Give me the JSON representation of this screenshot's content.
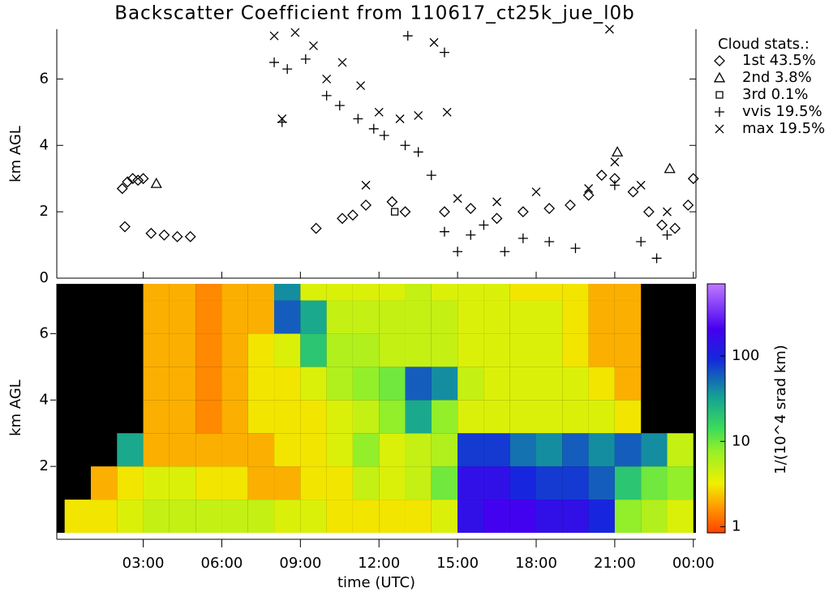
{
  "chart_data": [
    {
      "type": "scatter",
      "title": "Backscatter Coefficient from 110617_ct25k_jue_l0b",
      "y_label": "km AGL",
      "ylim": [
        0,
        7.5
      ],
      "yticks": [
        0,
        2,
        4,
        6
      ],
      "xlim": [
        -0.3,
        24.1
      ],
      "legend_title": "Cloud stats.:",
      "series": [
        {
          "name": "1st 43.5%",
          "marker": "diamond",
          "color": "#000000",
          "x": [
            2.2,
            2.4,
            2.6,
            2.8,
            3.0,
            2.3,
            3.3,
            3.8,
            4.3,
            4.8,
            9.6,
            10.6,
            11.0,
            11.5,
            12.5,
            13.0,
            14.5,
            15.5,
            16.5,
            17.5,
            18.5,
            19.3,
            20.0,
            20.5,
            21.0,
            21.7,
            22.3,
            22.8,
            23.3,
            23.8,
            24.0
          ],
          "y": [
            2.7,
            2.9,
            3.0,
            2.95,
            3.0,
            1.55,
            1.35,
            1.3,
            1.25,
            1.25,
            1.5,
            1.8,
            1.9,
            2.2,
            2.3,
            2.0,
            2.0,
            2.1,
            1.8,
            2.0,
            2.1,
            2.2,
            2.5,
            3.1,
            3.0,
            2.6,
            2.0,
            1.6,
            1.5,
            2.2,
            3.0
          ]
        },
        {
          "name": "2nd 3.8%",
          "marker": "triangle",
          "color": "#000000",
          "x": [
            3.5,
            21.1,
            23.1
          ],
          "y": [
            2.85,
            3.8,
            3.3
          ]
        },
        {
          "name": "3rd 0.1%",
          "marker": "square",
          "color": "#000000",
          "x": [
            12.6
          ],
          "y": [
            2.0
          ]
        },
        {
          "name": "vvis 19.5%",
          "marker": "plus",
          "color": "#000000",
          "x": [
            8.0,
            8.5,
            9.2,
            10.0,
            10.5,
            11.2,
            11.8,
            12.2,
            13.0,
            13.5,
            14.0,
            14.5,
            15.0,
            15.5,
            16.0,
            16.8,
            17.5,
            18.5,
            19.5,
            21.0,
            22.0,
            22.6,
            23.0,
            13.1,
            14.5,
            8.3
          ],
          "y": [
            6.5,
            6.3,
            6.6,
            5.5,
            5.2,
            4.8,
            4.5,
            4.3,
            4.0,
            3.8,
            3.1,
            1.4,
            0.8,
            1.3,
            1.6,
            0.8,
            1.2,
            1.1,
            0.9,
            2.8,
            1.1,
            0.6,
            1.3,
            7.3,
            6.8,
            4.7
          ]
        },
        {
          "name": "max 19.5%",
          "marker": "cross",
          "color": "#000000",
          "x": [
            8.0,
            8.8,
            9.5,
            10.0,
            10.6,
            11.3,
            12.0,
            12.8,
            13.5,
            14.1,
            14.6,
            15.0,
            16.5,
            18.0,
            20.0,
            21.0,
            22.0,
            23.0,
            11.5,
            8.3,
            20.8
          ],
          "y": [
            7.3,
            7.4,
            7.0,
            6.0,
            6.5,
            5.8,
            5.0,
            4.8,
            4.9,
            7.1,
            5.0,
            2.4,
            2.3,
            2.6,
            2.7,
            3.5,
            2.8,
            2.0,
            2.8,
            4.8,
            7.5
          ]
        }
      ]
    },
    {
      "type": "heatmap",
      "y_label": "km AGL",
      "x_label": "time (UTC)",
      "xlim": [
        -0.3,
        24.1
      ],
      "xticks": [
        {
          "value": 3,
          "label": "03:00"
        },
        {
          "value": 6,
          "label": "06:00"
        },
        {
          "value": 9,
          "label": "09:00"
        },
        {
          "value": 12,
          "label": "12:00"
        },
        {
          "value": 15,
          "label": "15:00"
        },
        {
          "value": 18,
          "label": "18:00"
        },
        {
          "value": 21,
          "label": "21:00"
        },
        {
          "value": 24,
          "label": "00:00"
        }
      ],
      "ylim": [
        0,
        7.5
      ],
      "yticks": [
        2,
        4,
        6
      ],
      "x_edges": [
        0,
        1,
        2,
        3,
        4,
        5,
        6,
        7,
        8,
        9,
        10,
        11,
        12,
        13,
        14,
        15,
        16,
        17,
        18,
        19,
        20,
        21,
        22,
        23,
        24
      ],
      "y_edges": [
        0,
        1,
        2,
        3,
        4,
        5,
        6,
        7,
        7.5
      ],
      "z": [
        [
          3,
          3,
          4,
          5,
          5,
          5,
          5,
          5,
          4,
          4,
          3,
          3,
          3,
          3,
          4,
          150,
          200,
          200,
          150,
          150,
          100,
          8,
          6,
          4
        ],
        [
          null,
          2,
          3,
          4,
          4,
          3,
          3,
          2,
          2,
          3,
          3,
          5,
          4,
          5,
          10,
          150,
          150,
          100,
          80,
          80,
          60,
          20,
          10,
          8
        ],
        [
          null,
          null,
          30,
          2,
          2,
          2,
          2,
          2,
          3,
          3,
          4,
          8,
          4,
          5,
          6,
          80,
          80,
          50,
          40,
          60,
          40,
          60,
          40,
          5
        ],
        [
          null,
          null,
          null,
          2,
          2,
          1.5,
          2,
          3,
          3,
          3,
          4,
          5,
          8,
          30,
          8,
          4,
          4,
          4,
          4,
          4,
          4,
          3,
          null,
          null
        ],
        [
          null,
          null,
          null,
          2,
          2,
          1.5,
          2,
          3,
          3,
          4,
          6,
          8,
          10,
          60,
          40,
          5,
          4,
          4,
          4,
          4,
          3,
          2,
          null,
          null
        ],
        [
          null,
          null,
          null,
          2,
          2,
          1.5,
          2,
          3,
          4,
          20,
          6,
          6,
          5,
          5,
          5,
          4,
          4,
          4,
          4,
          3,
          2,
          2,
          null,
          null
        ],
        [
          null,
          null,
          null,
          2,
          2,
          1.5,
          2,
          2,
          60,
          30,
          5,
          5,
          5,
          5,
          5,
          4,
          4,
          4,
          4,
          3,
          2,
          2,
          null,
          null
        ],
        [
          null,
          null,
          null,
          2,
          2,
          1.5,
          2,
          2,
          40,
          4,
          4,
          4,
          4,
          5,
          4,
          4,
          4,
          3,
          3,
          3,
          2,
          2,
          null,
          null
        ]
      ],
      "colorbar_label": "1/(10^4 srad km)",
      "clim": [
        0.85,
        700
      ],
      "cticks": [
        1,
        10,
        100
      ],
      "log_color": true
    }
  ]
}
